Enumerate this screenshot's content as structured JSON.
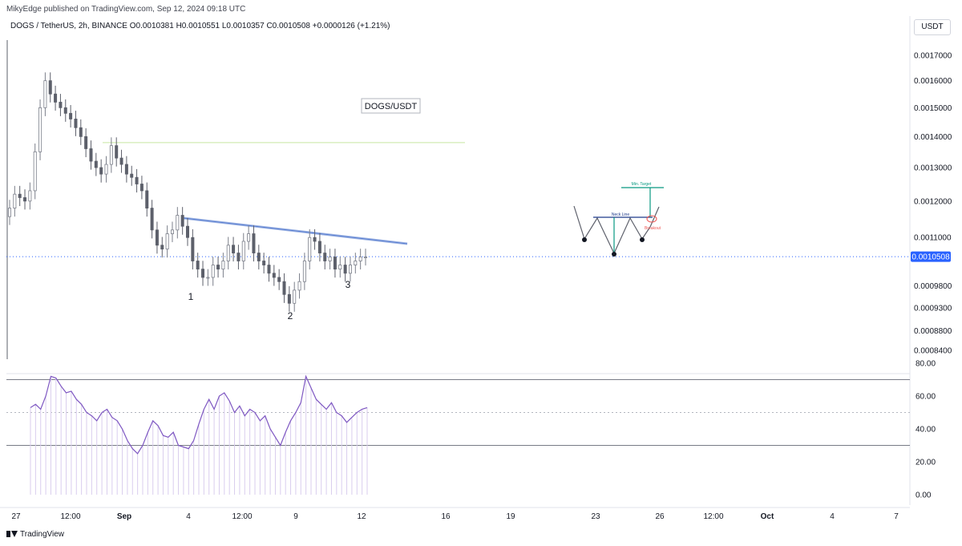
{
  "header": {
    "publisher": "MikyEdge published on TradingView.com, Sep 12, 2024 09:18 UTC",
    "symbol_line": "DOGS / TetherUS, 2h, BINANCE  O0.0010381  H0.0010551  L0.0010357  C0.0010508  +0.0000126 (+1.21%)",
    "currency": "USDT"
  },
  "footer": {
    "logo_text": "TradingView"
  },
  "colors": {
    "up": "#26a69a",
    "down": "#ef5350",
    "candle": "#5d606b",
    "trendline": "#9fb5e4",
    "rsi": "#7e57c2",
    "price_tag": "#2962ff",
    "target": "#089981"
  },
  "chart_data": [
    {
      "type": "candlestick",
      "title": "DOGS/USDT",
      "y_scale": "log",
      "ylim": [
        0.00082,
        0.0018
      ],
      "y_ticks": [
        "0.0017000",
        "0.0016000",
        "0.0015000",
        "0.0014000",
        "0.0013000",
        "0.0012000",
        "0.0011000",
        "0.0009800",
        "0.0009300",
        "0.0008800",
        "0.0008400"
      ],
      "x_ticks": [
        "27",
        "12:00",
        "Sep",
        "4",
        "12:00",
        "9",
        "12",
        "16",
        "19",
        "23",
        "26",
        "12:00",
        "Oct",
        "4",
        "7"
      ],
      "last_price": "0.0010508",
      "close_series": [
        0.00118,
        0.00122,
        0.00121,
        0.0012,
        0.00123,
        0.00135,
        0.0015,
        0.0016,
        0.00155,
        0.00152,
        0.0015,
        0.00148,
        0.00146,
        0.00143,
        0.0014,
        0.00136,
        0.00132,
        0.0013,
        0.00128,
        0.00131,
        0.00137,
        0.00133,
        0.00131,
        0.00128,
        0.00127,
        0.00125,
        0.00123,
        0.00118,
        0.00112,
        0.00108,
        0.00107,
        0.00111,
        0.00112,
        0.00116,
        0.00113,
        0.0011,
        0.00104,
        0.00102,
        0.001,
        0.001,
        0.00103,
        0.00102,
        0.00104,
        0.00108,
        0.00106,
        0.00104,
        0.00109,
        0.00111,
        0.00106,
        0.00104,
        0.00103,
        0.00101,
        0.001,
        0.00099,
        0.00096,
        0.00094,
        0.00097,
        0.00099,
        0.00104,
        0.0011,
        0.00109,
        0.00106,
        0.00104,
        0.00105,
        0.00102,
        0.00103,
        0.00101,
        0.00103,
        0.00104,
        0.00105,
        0.00105
      ],
      "annotations": {
        "swing_labels": [
          "1",
          "2",
          "3"
        ],
        "resistance_line": "descending",
        "horizontal_level": 0.00138,
        "pattern_labels": {
          "neck_line": "Neck Line",
          "min_target": "Min. Target",
          "breakout": "Breakout"
        }
      }
    },
    {
      "type": "line",
      "title": "",
      "ylim": [
        0,
        80
      ],
      "y_ticks": [
        "80.00",
        "60.00",
        "40.00",
        "20.00",
        "0.00"
      ],
      "bands": [
        70,
        50,
        30
      ],
      "series": [
        {
          "values": [
            53,
            55,
            52,
            60,
            72,
            71,
            66,
            62,
            63,
            58,
            55,
            50,
            48,
            45,
            50,
            52,
            47,
            45,
            40,
            33,
            28,
            25,
            30,
            38,
            45,
            42,
            36,
            35,
            38,
            30,
            29,
            28,
            33,
            43,
            52,
            58,
            52,
            60,
            62,
            57,
            50,
            54,
            48,
            52,
            50,
            45,
            48,
            40,
            35,
            30,
            38,
            45,
            50,
            56,
            72,
            65,
            58,
            55,
            52,
            56,
            50,
            48,
            44,
            47,
            50,
            52,
            53
          ]
        }
      ]
    }
  ]
}
